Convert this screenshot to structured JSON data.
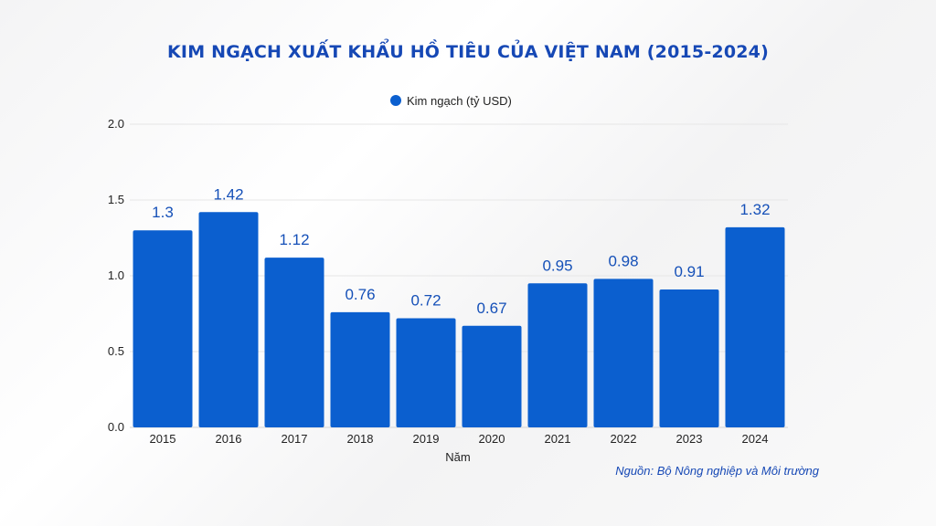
{
  "chart_data": {
    "type": "bar",
    "title": "KIM NGẠCH XUẤT KHẨU HỒ TIÊU CỦA VIỆT NAM (2015-2024)",
    "categories": [
      "2015",
      "2016",
      "2017",
      "2018",
      "2019",
      "2020",
      "2021",
      "2022",
      "2023",
      "2024"
    ],
    "series": [
      {
        "name": "Kim ngạch (tỷ USD)",
        "values": [
          1.3,
          1.42,
          1.12,
          0.76,
          0.72,
          0.67,
          0.95,
          0.98,
          0.91,
          1.32
        ],
        "labels": [
          "1.3",
          "1.42",
          "1.12",
          "0.76",
          "0.72",
          "0.67",
          "0.95",
          "0.98",
          "0.91",
          "1.32"
        ]
      }
    ],
    "xlabel": "Năm",
    "ylabel": "",
    "ylim": [
      0,
      2.0
    ],
    "yticks": [
      "0.0",
      "0.5",
      "1.0",
      "1.5",
      "2.0"
    ],
    "grid": true,
    "legend_position": "top-center",
    "bar_color": "#0b5fcf",
    "source": "Nguồn: Bộ Nông nghiệp và Môi trường"
  }
}
